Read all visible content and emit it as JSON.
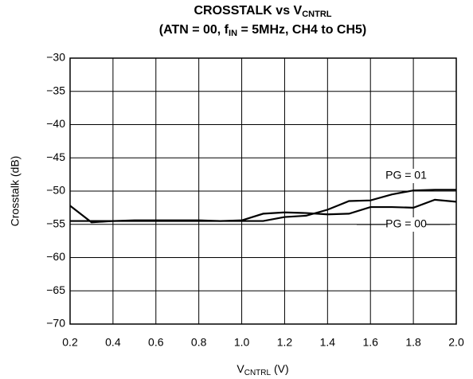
{
  "chart_data": {
    "type": "line",
    "title": [
      {
        "text": "CROSSTALK vs V"
      },
      {
        "sub": "CNTRL"
      }
    ],
    "subtitle": [
      {
        "text": "(ATN = 00, f"
      },
      {
        "sub": "IN"
      },
      {
        "text": " = 5MHz, CH4 to CH5)"
      }
    ],
    "x_label": [
      {
        "text": "V"
      },
      {
        "sub": "CNTRL"
      },
      {
        "text": " (V)"
      }
    ],
    "y_label": "Crosstalk (dB)",
    "x": [
      0.2,
      0.3,
      0.4,
      0.5,
      0.6,
      0.7,
      0.8,
      0.9,
      1.0,
      1.1,
      1.2,
      1.3,
      1.4,
      1.5,
      1.6,
      1.7,
      1.8,
      1.9,
      2.0
    ],
    "series": [
      {
        "name": "PG = 00",
        "color": "#000000",
        "values": [
          -52.2,
          -54.7,
          -54.5,
          -54.4,
          -54.4,
          -54.4,
          -54.4,
          -54.5,
          -54.4,
          -53.4,
          -53.2,
          -53.3,
          -53.5,
          -53.4,
          -52.4,
          -52.4,
          -52.5,
          -51.3,
          -51.6
        ]
      },
      {
        "name": "PG = 01",
        "color": "#000000",
        "values": [
          -54.5,
          -54.5,
          -54.5,
          -54.5,
          -54.5,
          -54.5,
          -54.5,
          -54.5,
          -54.5,
          -54.5,
          -53.9,
          -53.7,
          -52.8,
          -51.5,
          -51.4,
          -50.5,
          -49.9,
          -49.8,
          -49.8
        ]
      }
    ],
    "xlim": [
      0.2,
      2.0
    ],
    "xticks": [
      0.2,
      0.4,
      0.6,
      0.8,
      {
        "value": 1,
        "label": "1.0"
      },
      1.2,
      1.4,
      1.6,
      1.8,
      {
        "value": 2,
        "label": "2.0"
      }
    ],
    "ylim": [
      -70,
      -30
    ],
    "yticks": [
      {
        "value": -70,
        "label": "−70"
      },
      {
        "value": -65,
        "label": "−65"
      },
      {
        "value": -60,
        "label": "−60"
      },
      {
        "value": -55,
        "label": "−55"
      },
      {
        "value": -50,
        "label": "−50"
      },
      {
        "value": -45,
        "label": "−45"
      },
      {
        "value": -40,
        "label": "−40"
      },
      {
        "value": -35,
        "label": "−35"
      },
      {
        "value": -30,
        "label": "−30"
      }
    ],
    "grid": true
  }
}
